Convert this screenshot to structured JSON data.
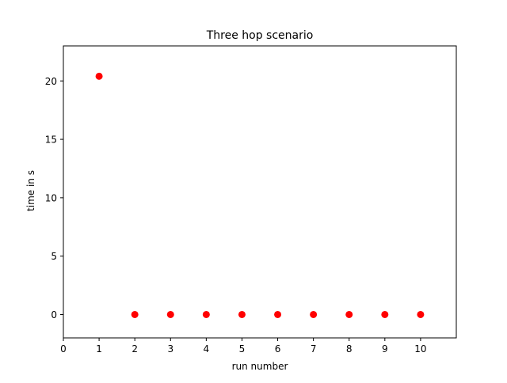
{
  "chart_data": {
    "type": "scatter",
    "title": "Three hop scenario",
    "xlabel": "run number",
    "ylabel": "time in s",
    "xlim": [
      0,
      11
    ],
    "ylim": [
      -2,
      23
    ],
    "xticks": [
      0,
      1,
      2,
      3,
      4,
      5,
      6,
      7,
      8,
      9,
      10
    ],
    "yticks": [
      0,
      5,
      10,
      15,
      20
    ],
    "grid": false,
    "series": [
      {
        "color": "#ff0000",
        "marker": "circle",
        "points": [
          {
            "x": 1,
            "y": 20.4
          },
          {
            "x": 2,
            "y": 0
          },
          {
            "x": 3,
            "y": 0
          },
          {
            "x": 4,
            "y": 0
          },
          {
            "x": 5,
            "y": 0
          },
          {
            "x": 6,
            "y": 0
          },
          {
            "x": 7,
            "y": 0
          },
          {
            "x": 8,
            "y": 0
          },
          {
            "x": 9,
            "y": 0
          },
          {
            "x": 10,
            "y": 0
          }
        ]
      }
    ]
  }
}
